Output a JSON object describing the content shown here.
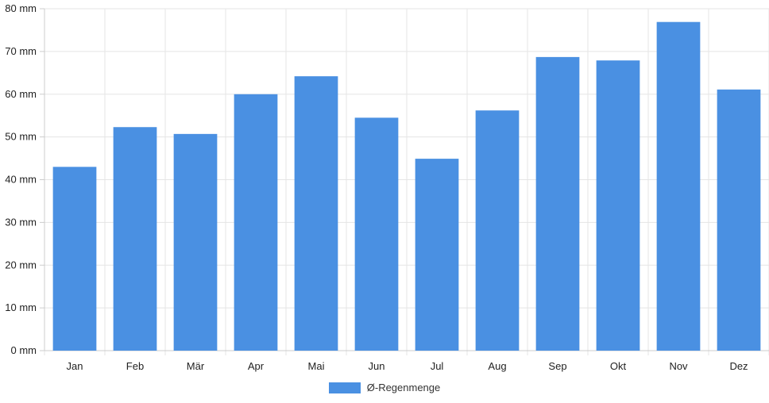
{
  "chart_data": {
    "type": "bar",
    "categories": [
      "Jan",
      "Feb",
      "Mär",
      "Apr",
      "Mai",
      "Jun",
      "Jul",
      "Aug",
      "Sep",
      "Okt",
      "Nov",
      "Dez"
    ],
    "series": [
      {
        "name": "Ø-Regenmenge",
        "values": [
          43,
          52.3,
          50.7,
          60,
          64.2,
          54.5,
          44.9,
          56.2,
          68.7,
          67.9,
          76.9,
          61.1
        ]
      }
    ],
    "y_ticks": [
      "0 mm",
      "10 mm",
      "20 mm",
      "30 mm",
      "40 mm",
      "50 mm",
      "60 mm",
      "70 mm",
      "80 mm"
    ],
    "ylim": [
      0,
      80
    ],
    "grid": true,
    "legend_position": "bottom",
    "bar_color": "#4a90e2",
    "grid_color": "#e5e5e5",
    "axis_color": "#cccccc"
  }
}
